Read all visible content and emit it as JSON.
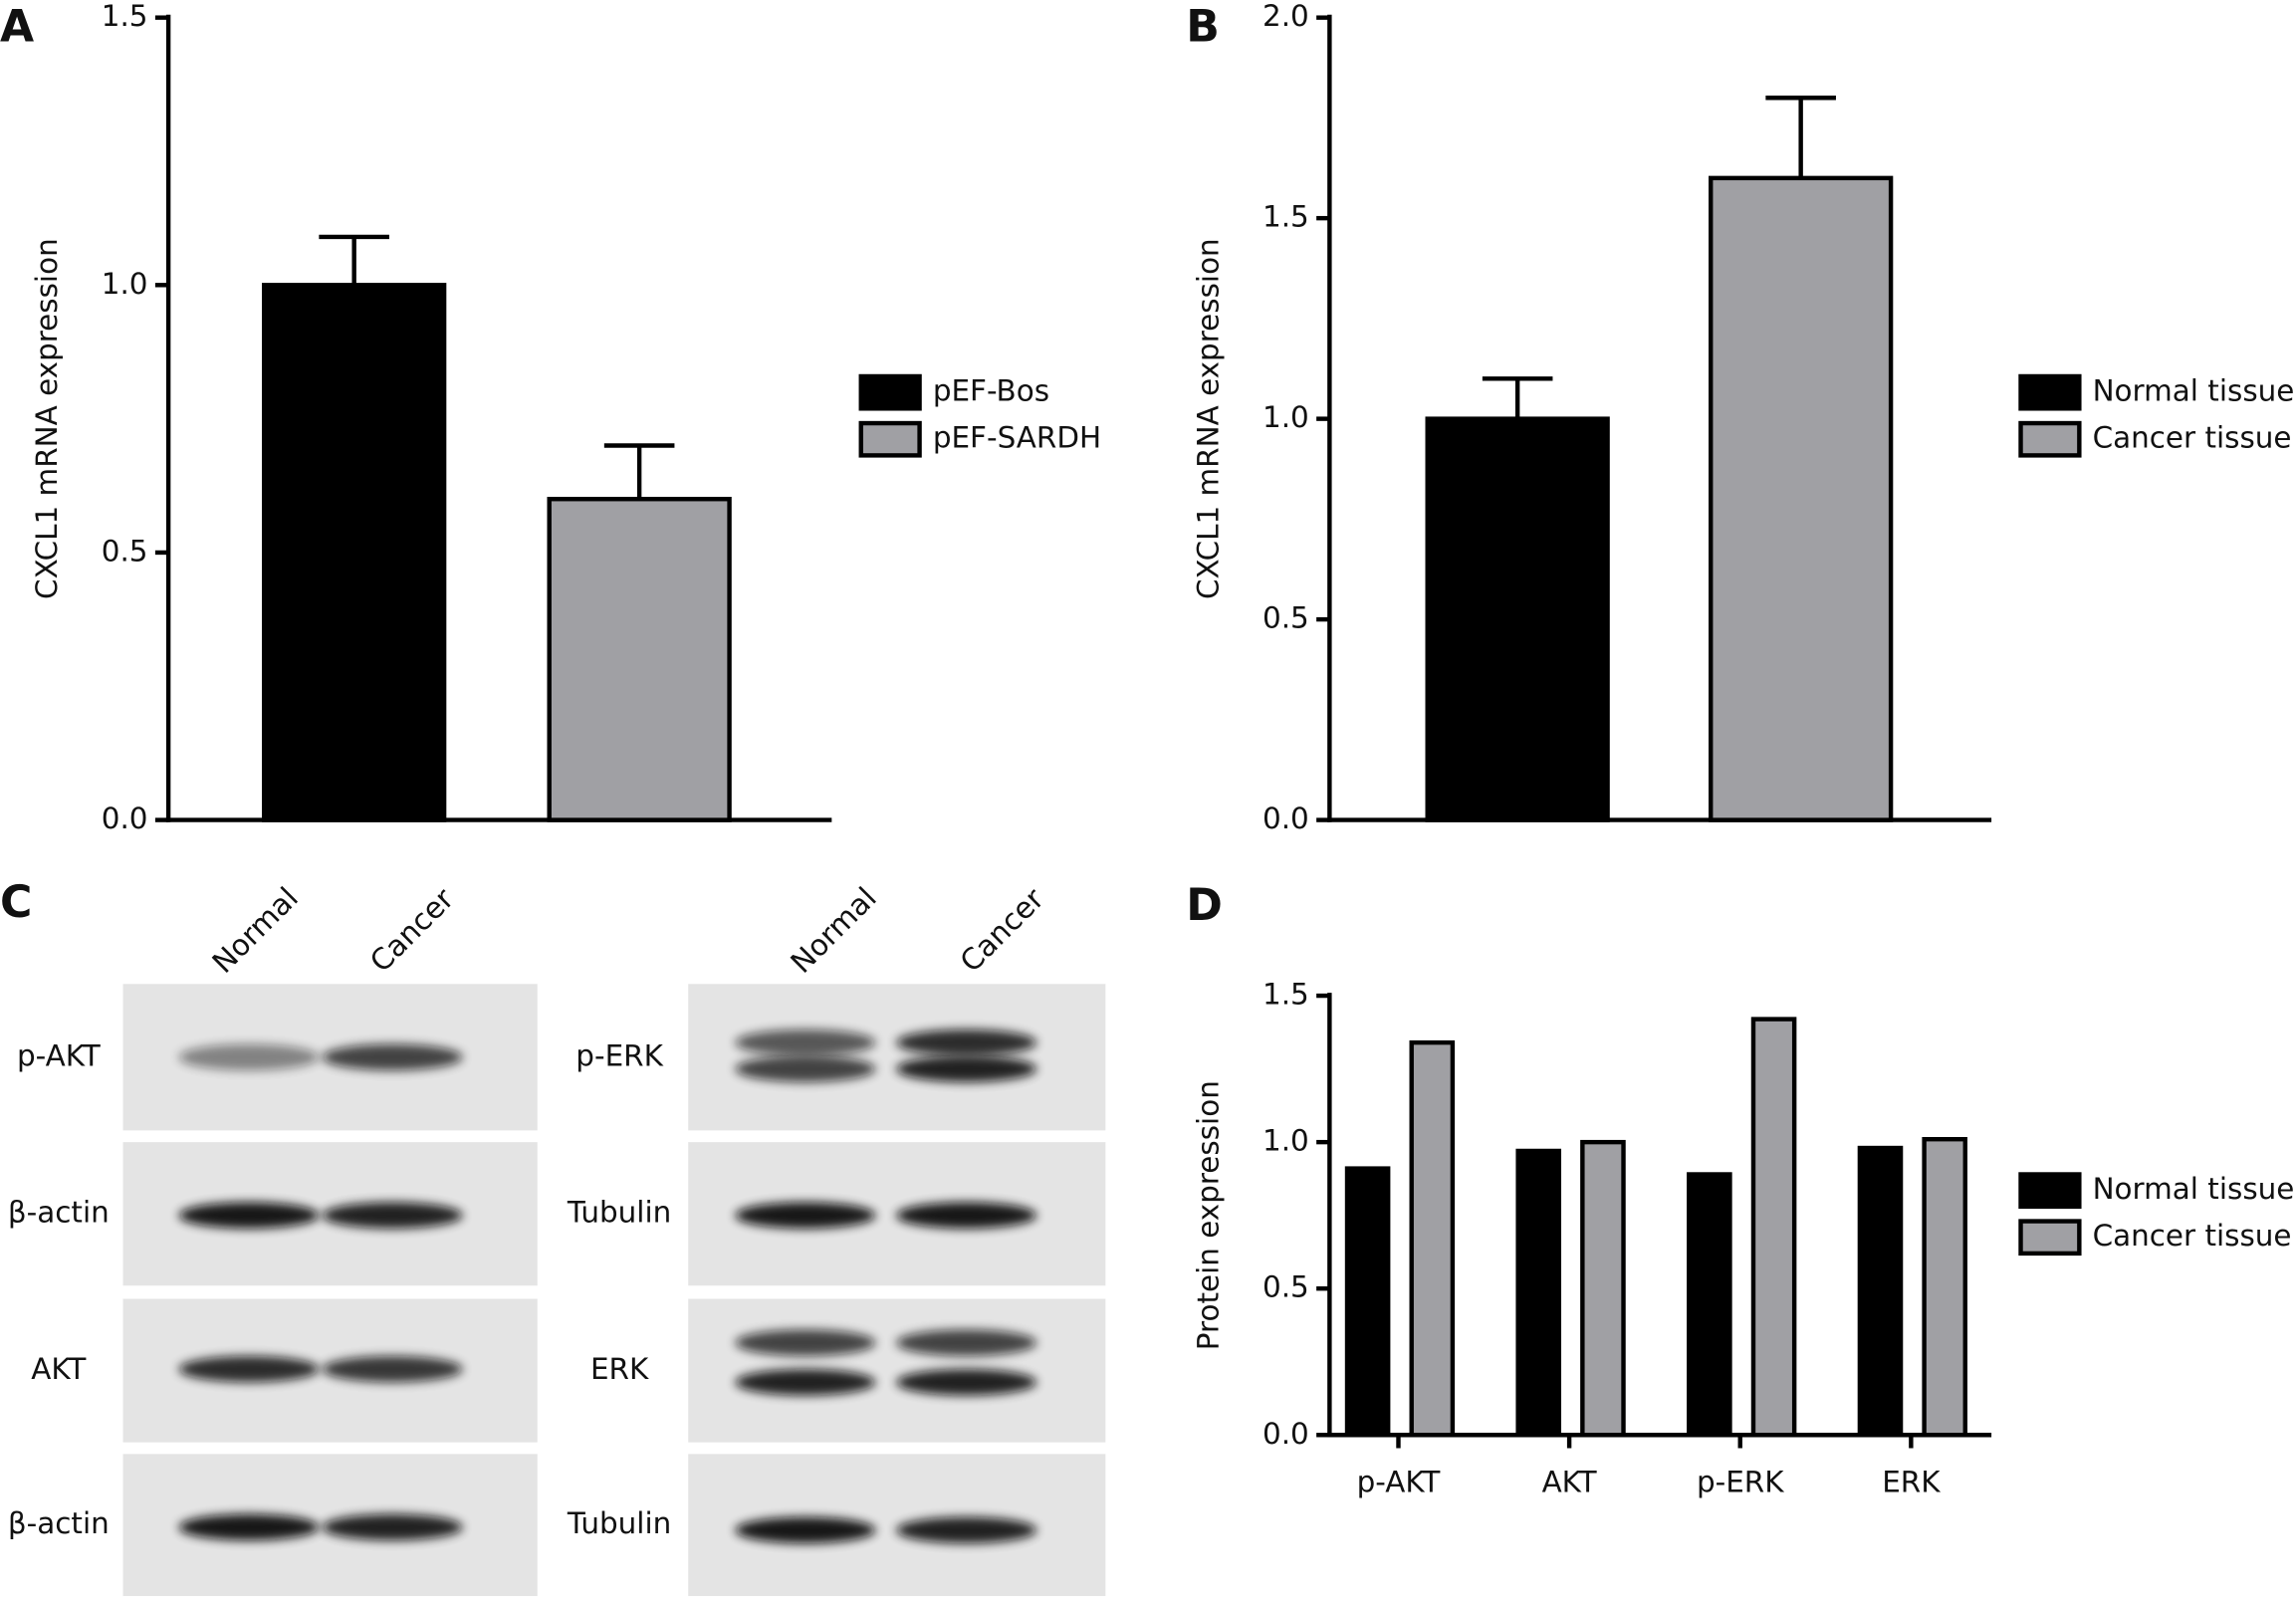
{
  "chart_data": [
    {
      "panel": "A",
      "type": "bar",
      "y_label": "CXCL1 mRNA expression",
      "series": [
        {
          "name": "pEF-Bos",
          "color": "#000000",
          "values": [
            1.0
          ],
          "errors": [
            0.09
          ]
        },
        {
          "name": "pEF-SARDH",
          "color": "#a0a0a4",
          "values": [
            0.6
          ],
          "errors": [
            0.1
          ]
        }
      ],
      "ylim": [
        0,
        1.5
      ],
      "yticks": [
        {
          "value": 0,
          "label": "0.0"
        },
        0.5,
        {
          "value": 1,
          "label": "1.0"
        },
        1.5
      ]
    },
    {
      "panel": "B",
      "type": "bar",
      "y_label": "CXCL1 mRNA expression",
      "series": [
        {
          "name": "Normal tissue",
          "color": "#000000",
          "values": [
            1.0
          ],
          "errors": [
            0.1
          ]
        },
        {
          "name": "Cancer tissue",
          "color": "#a0a0a4",
          "values": [
            1.6
          ],
          "errors": [
            0.2
          ]
        }
      ],
      "ylim": [
        0,
        2
      ],
      "yticks": [
        {
          "value": 0,
          "label": "0.0"
        },
        0.5,
        {
          "value": 1,
          "label": "1.0"
        },
        1.5,
        {
          "value": 2,
          "label": "2.0"
        }
      ]
    },
    {
      "panel": "D",
      "type": "bar",
      "y_label": "Protein expression",
      "categories": [
        "p-AKT",
        "AKT",
        "p-ERK",
        "ERK"
      ],
      "series": [
        {
          "name": "Normal tissue",
          "color": "#000000",
          "values": [
            0.91,
            0.97,
            0.89,
            0.98
          ]
        },
        {
          "name": "Cancer tissue",
          "color": "#a0a0a4",
          "values": [
            1.34,
            1.0,
            1.42,
            1.01
          ]
        }
      ],
      "ylim": [
        0,
        1.5
      ],
      "yticks": [
        {
          "value": 0,
          "label": "0.0"
        },
        0.5,
        {
          "value": 1,
          "label": "1.0"
        },
        1.5
      ]
    }
  ],
  "blot": {
    "panel": "C",
    "left": {
      "lanes": [
        "Normal",
        "Cancer"
      ],
      "rows": [
        "p-AKT",
        "β-actin",
        "AKT",
        "β-actin"
      ]
    },
    "right": {
      "lanes": [
        "Normal",
        "Cancer"
      ],
      "rows": [
        "p-ERK",
        "Tubulin",
        "ERK",
        "Tubulin"
      ]
    }
  }
}
